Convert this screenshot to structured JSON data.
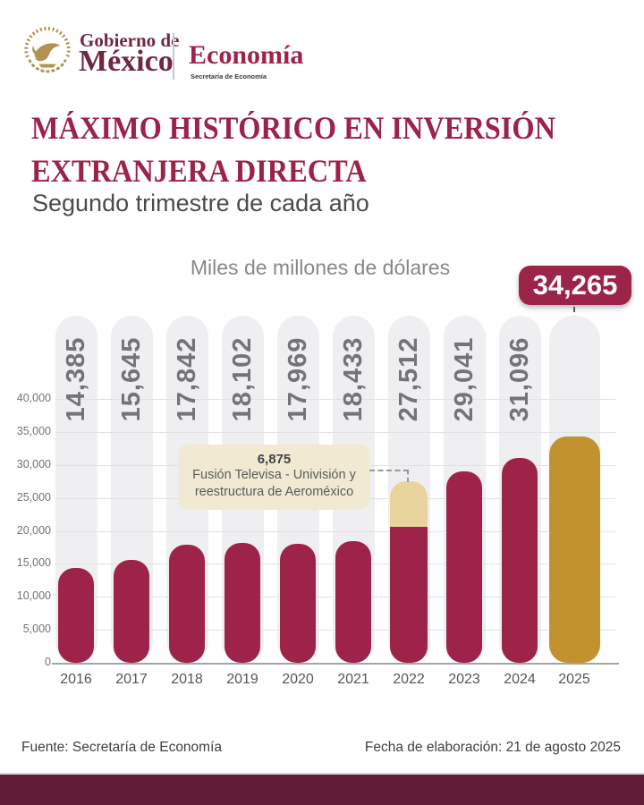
{
  "header": {
    "logo_text_small": "Gobierno de",
    "logo_text_large": "México",
    "secretariat": "Economía",
    "secretariat_sub": "Secretaría de Economía"
  },
  "title": {
    "line1": "MÁXIMO HISTÓRICO EN INVERSIÓN",
    "line2": "EXTRANJERA DIRECTA",
    "subtitle": "Segundo trimestre de cada año"
  },
  "chart_data": {
    "type": "bar",
    "title": "Miles de millones de dólares",
    "categories": [
      "2016",
      "2017",
      "2018",
      "2019",
      "2020",
      "2021",
      "2022",
      "2023",
      "2024",
      "2025"
    ],
    "values": [
      14385,
      15645,
      17842,
      18102,
      17969,
      18433,
      27512,
      29041,
      31096,
      34265
    ],
    "value_labels": [
      "14,385",
      "15,645",
      "17,842",
      "18,102",
      "17,969",
      "18,433",
      "27,512",
      "29,041",
      "31,096",
      "34,265"
    ],
    "highlight_year": "2025",
    "highlight_value_label": "34,265",
    "ylim": [
      0,
      40000
    ],
    "ytick_step": 5000,
    "ytick_labels": [
      "0",
      "5,000",
      "10,000",
      "15,000",
      "20,000",
      "25,000",
      "30,000",
      "35,000",
      "40,000"
    ],
    "grid": true,
    "legend": "none",
    "annotation": {
      "value_label": "6,875",
      "segment_value": 6875,
      "text_line1": "Fusión Televisa - Univisión y",
      "text_line2": "reestructura de Aeroméxico",
      "target_year": "2022"
    },
    "colors": {
      "bar": "#9e2349",
      "highlight_bar": "#c2922f",
      "segment": "#e9d49e",
      "annotation_bg": "#f2e9d2",
      "badge_bg": "#9d2449",
      "pill_bg": "#efeef0",
      "band_bg": "#621d37",
      "seal_gold": "#b29351"
    }
  },
  "footer": {
    "source": "Fuente: Secretaría de Economía",
    "date": "Fecha de elaboración: 21 de agosto 2025"
  }
}
